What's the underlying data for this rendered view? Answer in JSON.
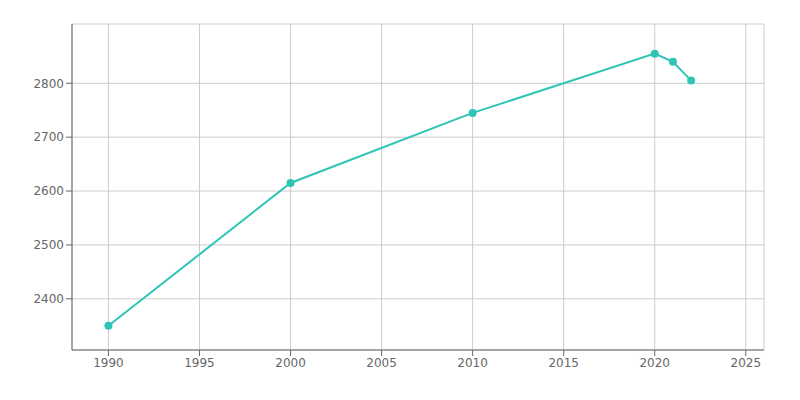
{
  "chart_data": {
    "type": "line",
    "x": [
      1990,
      2000,
      2010,
      2020,
      2021,
      2022
    ],
    "values": [
      2350,
      2615,
      2745,
      2855,
      2840,
      2805
    ],
    "color": "#2ec4b6",
    "marker": "circle",
    "xlim": [
      1988,
      2026
    ],
    "ylim": [
      2305,
      2910
    ],
    "xticks": [
      1990,
      1995,
      2000,
      2005,
      2010,
      2015,
      2020,
      2025
    ],
    "yticks": [
      2400,
      2500,
      2600,
      2700,
      2800
    ],
    "grid": true
  }
}
